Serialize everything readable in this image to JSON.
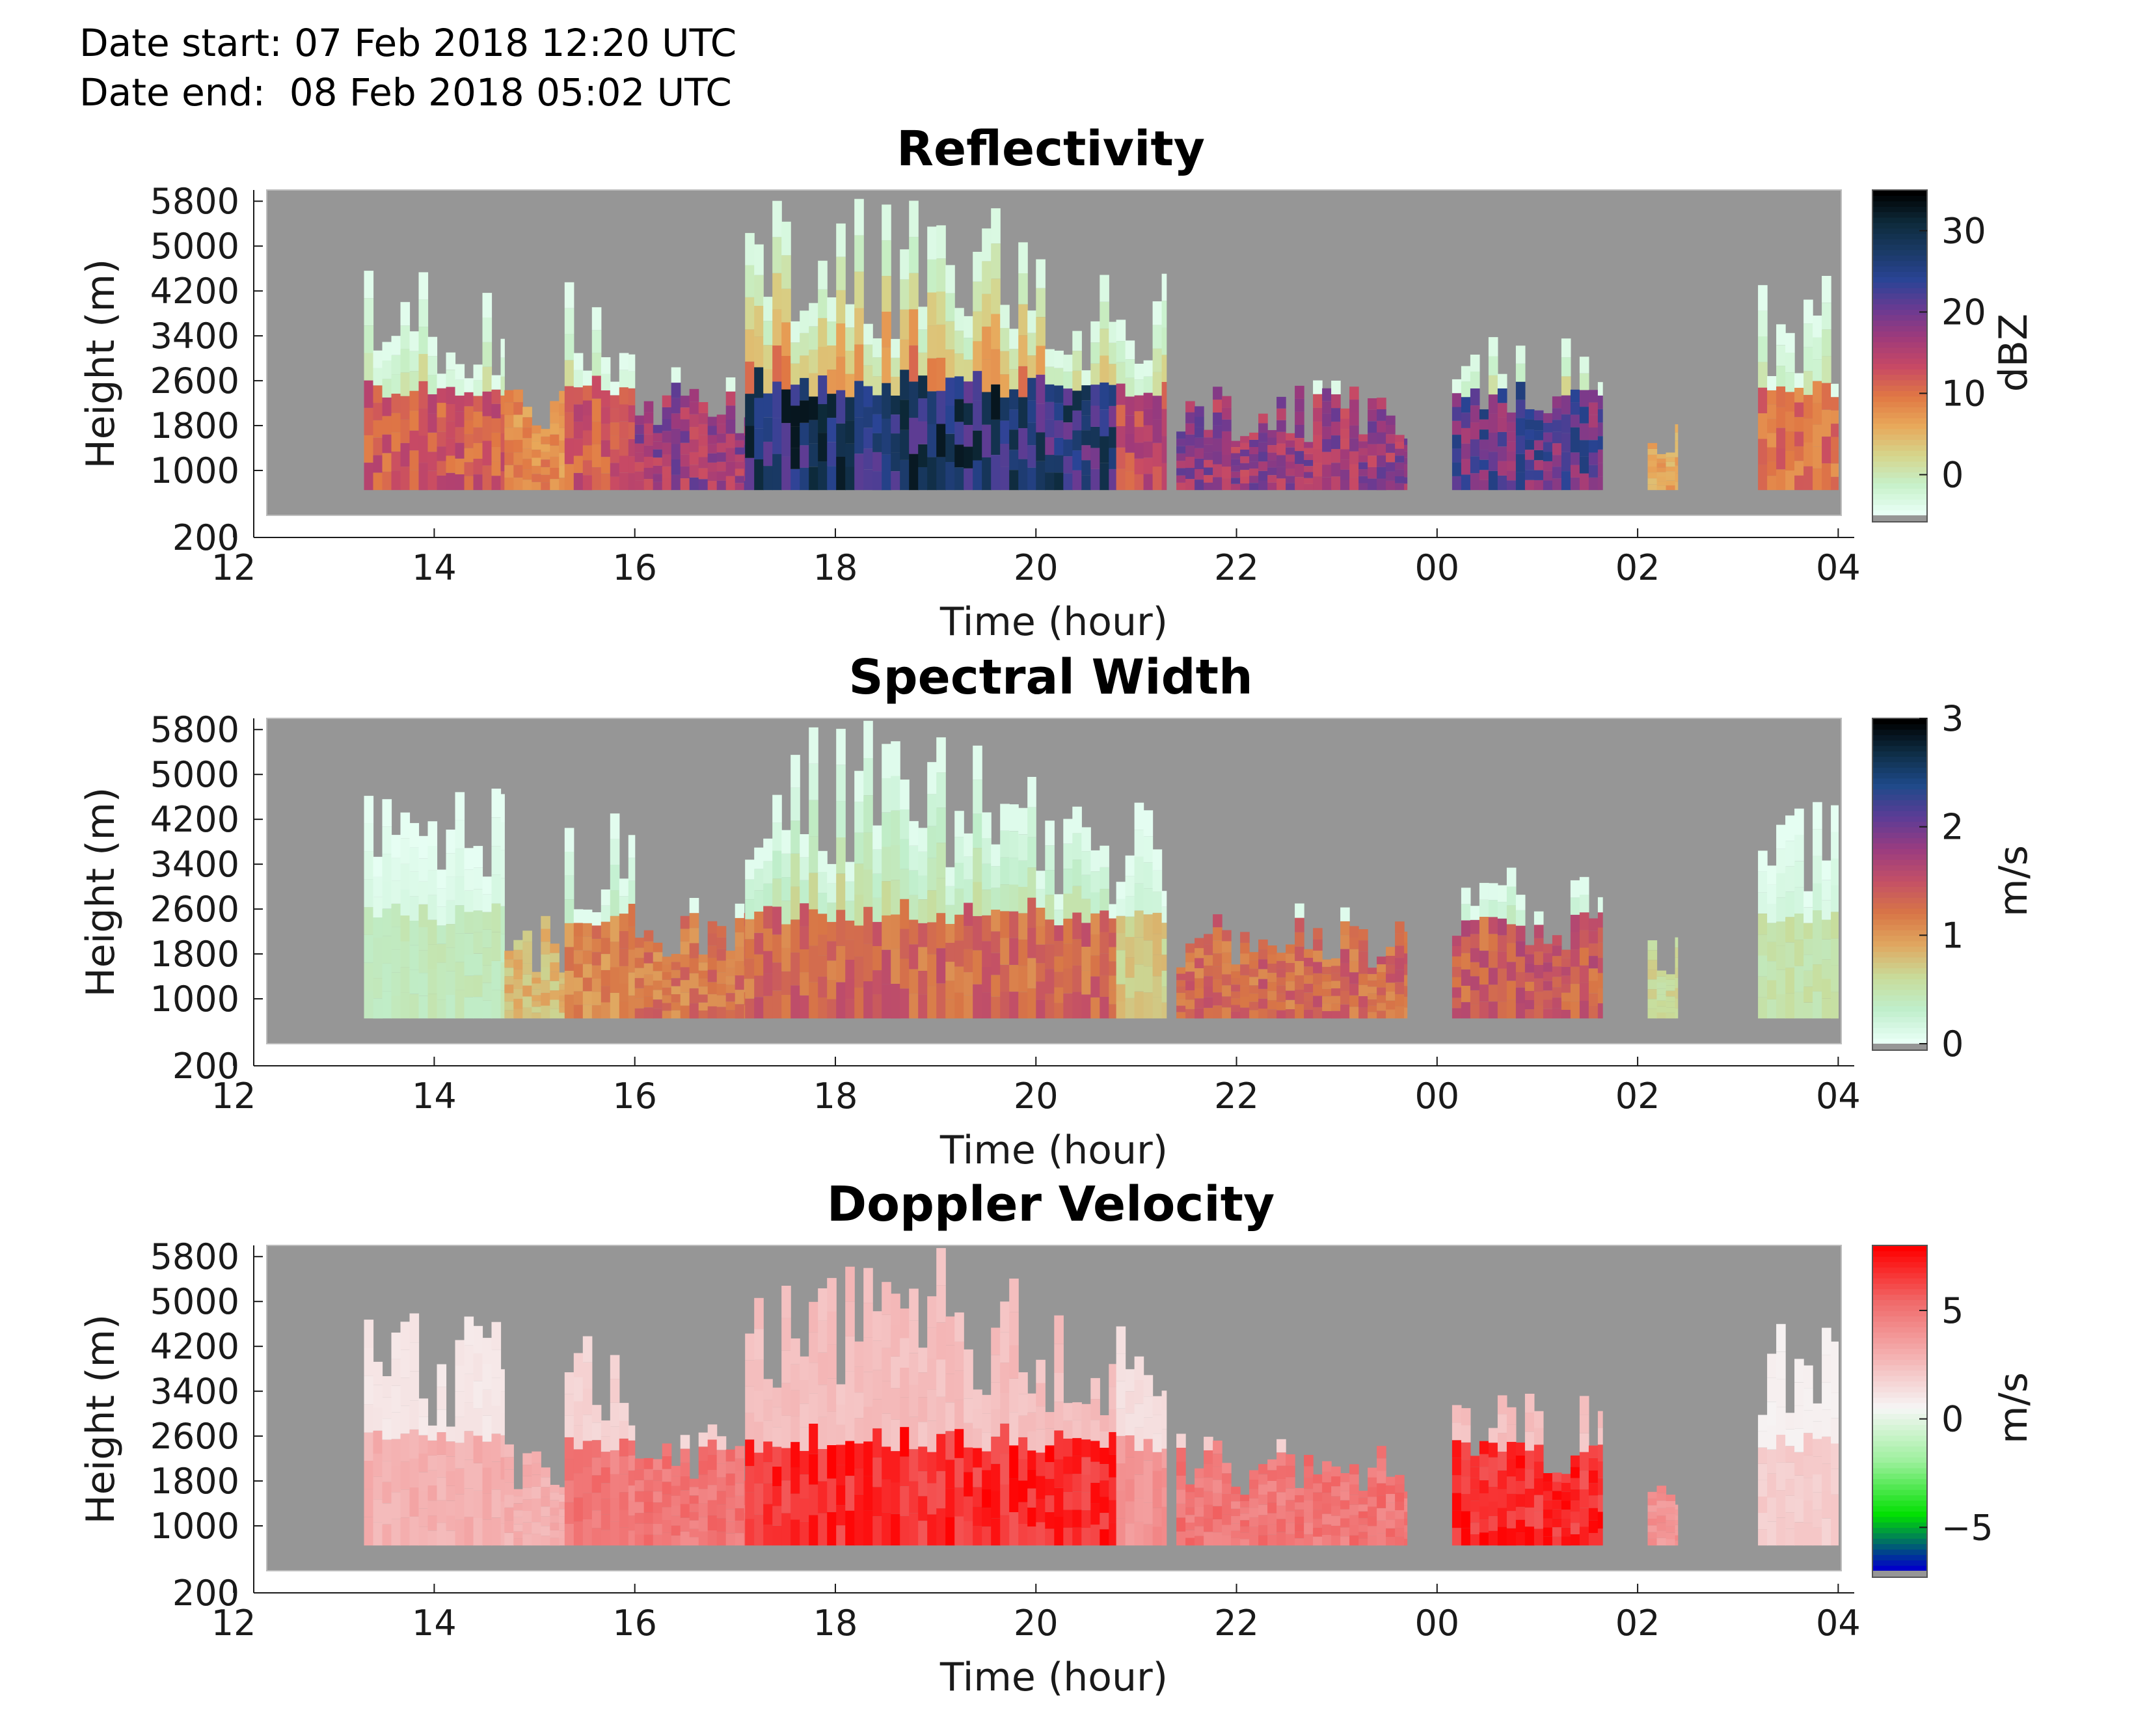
{
  "header": {
    "date_start": "Date start: 07 Feb 2018 12:20 UTC",
    "date_end": "Date end:  08 Feb 2018 05:02 UTC"
  },
  "colors": {
    "missing": "#969696",
    "reflectivity_cmap": [
      "#e8fff5",
      "#c6f0c8",
      "#d6d48a",
      "#e8a85a",
      "#e07844",
      "#c84a64",
      "#a03a7a",
      "#6a3a92",
      "#2a4496",
      "#1a3a66",
      "#0d2a3a",
      "#000000"
    ],
    "width_cmap": [
      "#e8fff5",
      "#bfeecb",
      "#c8dc9a",
      "#e0a860",
      "#d87646",
      "#c45066",
      "#9a3c80",
      "#5c3c96",
      "#1e4a8a",
      "#0e2e46",
      "#000000"
    ],
    "velocity_cmap": [
      "#0000c8",
      "#00e000",
      "#9cf09c",
      "#f6f6f6",
      "#f4b0b0",
      "#f06a6a",
      "#ff0000"
    ]
  },
  "chart_data": [
    {
      "type": "heatmap",
      "title": "Reflectivity",
      "xlabel": "Time (hour)",
      "ylabel": "Height (m)",
      "x_tick_labels": [
        "12",
        "14",
        "16",
        "18",
        "20",
        "22",
        "00",
        "02",
        "04"
      ],
      "y_tick_labels": [
        "5800",
        "5000",
        "4200",
        "3400",
        "2600",
        "1800",
        "1000",
        "200"
      ],
      "xlim": [
        12.33,
        28.03
      ],
      "ylim": [
        200,
        6000
      ],
      "colorbar": {
        "label": "dBZ",
        "ticks": [
          "30",
          "20",
          "10",
          "0"
        ],
        "range": [
          -5,
          35
        ]
      },
      "segments": [
        {
          "start": 13.3,
          "end": 14.7,
          "top": 4800,
          "core": 12
        },
        {
          "start": 14.7,
          "end": 15.3,
          "top": 2600,
          "core": 8
        },
        {
          "start": 15.3,
          "end": 16.0,
          "top": 4400,
          "core": 12
        },
        {
          "start": 16.0,
          "end": 17.1,
          "top": 2900,
          "core": 17
        },
        {
          "start": 17.1,
          "end": 20.0,
          "top": 6000,
          "core": 27
        },
        {
          "start": 20.0,
          "end": 20.8,
          "top": 4800,
          "core": 25
        },
        {
          "start": 20.8,
          "end": 21.3,
          "top": 4600,
          "core": 14
        },
        {
          "start": 21.4,
          "end": 23.7,
          "top": 2700,
          "core": 17
        },
        {
          "start": 24.15,
          "end": 25.65,
          "top": 3400,
          "core": 21
        },
        {
          "start": 26.1,
          "end": 26.4,
          "top": 2200,
          "core": 6
        },
        {
          "start": 27.2,
          "end": 28.0,
          "top": 4600,
          "core": 10
        }
      ]
    },
    {
      "type": "heatmap",
      "title": "Spectral Width",
      "xlabel": "Time (hour)",
      "ylabel": "Height (m)",
      "x_tick_labels": [
        "12",
        "14",
        "16",
        "18",
        "20",
        "22",
        "00",
        "02",
        "04"
      ],
      "y_tick_labels": [
        "5800",
        "5000",
        "4200",
        "3400",
        "2600",
        "1800",
        "1000",
        "200"
      ],
      "xlim": [
        12.33,
        28.03
      ],
      "ylim": [
        200,
        6000
      ],
      "colorbar": {
        "label": "m/s",
        "ticks": [
          "3",
          "2",
          "1",
          "0"
        ],
        "range": [
          0,
          3
        ]
      },
      "segments": [
        {
          "start": 13.3,
          "end": 14.7,
          "top": 4800,
          "core": 0.4
        },
        {
          "start": 14.7,
          "end": 15.3,
          "top": 2600,
          "core": 0.8
        },
        {
          "start": 15.3,
          "end": 16.0,
          "top": 4400,
          "core": 1.1
        },
        {
          "start": 16.0,
          "end": 17.1,
          "top": 2900,
          "core": 1.2
        },
        {
          "start": 17.1,
          "end": 20.0,
          "top": 6000,
          "core": 1.3
        },
        {
          "start": 20.0,
          "end": 20.8,
          "top": 4800,
          "core": 1.3
        },
        {
          "start": 20.8,
          "end": 21.3,
          "top": 4600,
          "core": 0.7
        },
        {
          "start": 21.4,
          "end": 23.7,
          "top": 2700,
          "core": 1.3
        },
        {
          "start": 24.15,
          "end": 25.65,
          "top": 3400,
          "core": 1.4
        },
        {
          "start": 26.1,
          "end": 26.4,
          "top": 2200,
          "core": 0.6
        },
        {
          "start": 27.2,
          "end": 28.0,
          "top": 4600,
          "core": 0.5
        }
      ]
    },
    {
      "type": "heatmap",
      "title": "Doppler Velocity",
      "xlabel": "Time (hour)",
      "ylabel": "Height (m)",
      "x_tick_labels": [
        "12",
        "14",
        "16",
        "18",
        "20",
        "22",
        "00",
        "02",
        "04"
      ],
      "y_tick_labels": [
        "5800",
        "5000",
        "4200",
        "3400",
        "2600",
        "1800",
        "1000",
        "200"
      ],
      "xlim": [
        12.33,
        28.03
      ],
      "ylim": [
        200,
        6000
      ],
      "colorbar": {
        "label": "m/s",
        "ticks": [
          "5",
          "0",
          "−5"
        ],
        "range": [
          -7,
          8
        ]
      },
      "segments": [
        {
          "start": 13.3,
          "end": 14.7,
          "top": 4800,
          "core": 3
        },
        {
          "start": 14.7,
          "end": 15.3,
          "top": 2600,
          "core": 3
        },
        {
          "start": 15.3,
          "end": 16.0,
          "top": 4400,
          "core": 5
        },
        {
          "start": 16.0,
          "end": 17.1,
          "top": 2900,
          "core": 5
        },
        {
          "start": 17.1,
          "end": 20.0,
          "top": 6000,
          "core": 7
        },
        {
          "start": 20.0,
          "end": 20.8,
          "top": 4800,
          "core": 7
        },
        {
          "start": 20.8,
          "end": 21.3,
          "top": 4600,
          "core": 4
        },
        {
          "start": 21.4,
          "end": 23.7,
          "top": 2700,
          "core": 5
        },
        {
          "start": 24.15,
          "end": 25.65,
          "top": 3400,
          "core": 7
        },
        {
          "start": 26.1,
          "end": 26.4,
          "top": 2200,
          "core": 4
        },
        {
          "start": 27.2,
          "end": 28.0,
          "top": 4600,
          "core": 2
        }
      ]
    }
  ]
}
